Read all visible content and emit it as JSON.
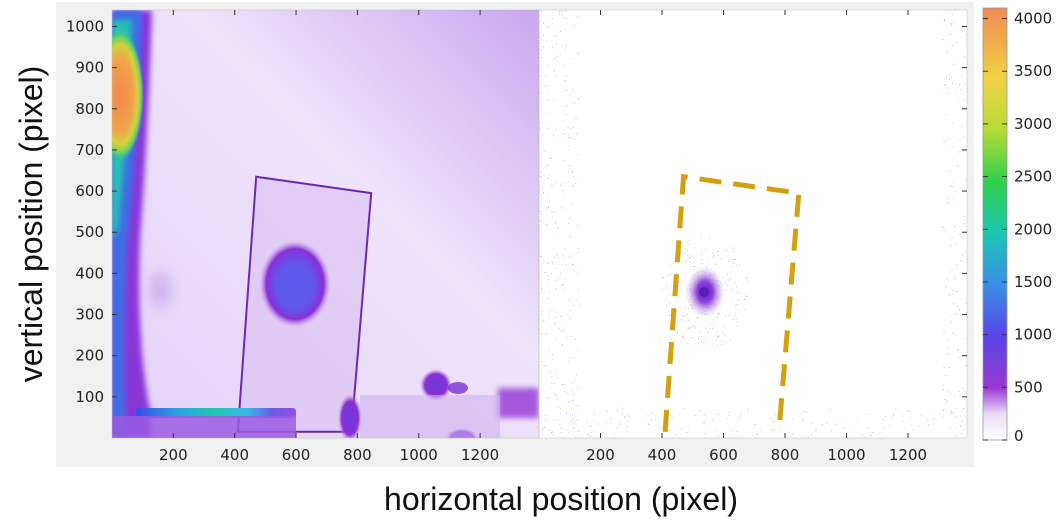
{
  "chart_data": [
    {
      "type": "heatmap",
      "panel": "left",
      "title": "",
      "xlabel": "horizontal position (pixel)",
      "ylabel": "vertical position (pixel)",
      "xlim": [
        0,
        1392
      ],
      "ylim": [
        0,
        1040
      ],
      "xticks": [
        200,
        400,
        600,
        800,
        1000,
        1200
      ],
      "yticks": [
        100,
        200,
        300,
        400,
        500,
        600,
        700,
        800,
        900,
        1000
      ],
      "xtick_labels": [
        "200",
        "400",
        "600",
        "800",
        "1000",
        "1200"
      ],
      "ytick_labels": [
        "100",
        "200",
        "300",
        "400",
        "500",
        "600",
        "700",
        "800",
        "900",
        "1000"
      ],
      "sample_outline": [
        [
          470,
          635
        ],
        [
          845,
          595
        ],
        [
          780,
          15
        ],
        [
          410,
          15
        ]
      ]
    },
    {
      "type": "heatmap",
      "panel": "right",
      "title": "",
      "xlabel": "horizontal position (pixel)",
      "ylabel": "",
      "xlim": [
        0,
        1392
      ],
      "ylim": [
        0,
        1040
      ],
      "xticks": [
        200,
        400,
        600,
        800,
        1000,
        1200
      ],
      "xtick_labels": [
        "200",
        "400",
        "600",
        "800",
        "1000",
        "1200"
      ],
      "dashed_outline": [
        [
          470,
          635
        ],
        [
          845,
          595
        ],
        [
          780,
          15
        ],
        [
          410,
          15
        ]
      ],
      "dashed_outline_color": "#d4a010",
      "hotspot": [
        540,
        350
      ]
    }
  ],
  "colorbar": {
    "range": [
      0,
      4100
    ],
    "ticks": [
      0,
      500,
      1000,
      1500,
      2000,
      2500,
      3000,
      3500,
      4000
    ],
    "tick_labels": [
      "0",
      "500",
      "1000",
      "1500",
      "2000",
      "2500",
      "3000",
      "3500",
      "4000"
    ],
    "colors": [
      "#ffffff",
      "#ecdcf8",
      "#9a3ad0",
      "#5a44e8",
      "#3890e6",
      "#1cc6b0",
      "#30d04c",
      "#b8dc34",
      "#f0d244",
      "#f08a54"
    ]
  },
  "labels": {
    "xlabel": "horizontal position (pixel)",
    "ylabel": "vertical position (pixel)"
  }
}
